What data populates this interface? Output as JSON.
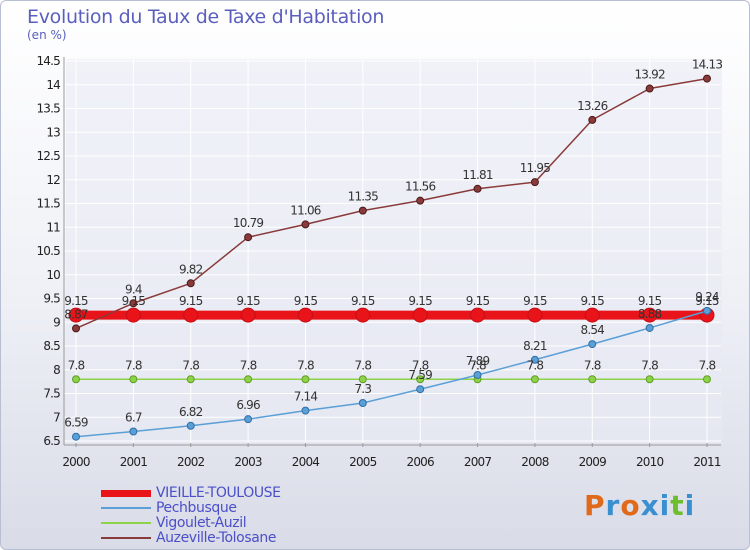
{
  "header": {
    "title": "Evolution du Taux de Taxe d'Habitation",
    "subtitle": "(en %)"
  },
  "logo_text": "Proxiti",
  "colors": {
    "axis": "#9a9a9a",
    "grid": "#ffffff",
    "tick_text": "#222222",
    "title": "#5a5fbe",
    "legend_text": "#4b4fc8"
  },
  "chart_data": {
    "type": "line",
    "title": "Evolution du Taux de Taxe d'Habitation",
    "subtitle": "(en %)",
    "xlabel": "",
    "ylabel": "",
    "x": [
      "2000",
      "2001",
      "2002",
      "2003",
      "2004",
      "2005",
      "2006",
      "2007",
      "2008",
      "2009",
      "2010",
      "2011"
    ],
    "ylim": [
      6.5,
      14.5
    ],
    "yticks": [
      "6.5",
      "7",
      "7.5",
      "8",
      "8.5",
      "9",
      "9.5",
      "10",
      "10.5",
      "11",
      "11.5",
      "12",
      "12.5",
      "13",
      "13.5",
      "14",
      "14.5"
    ],
    "grid": true,
    "legend_position": "bottom-left",
    "series": [
      {
        "name": "VIEILLE-TOULOUSE",
        "color": "#e8141a",
        "values": [
          9.15,
          9.15,
          9.15,
          9.15,
          9.15,
          9.15,
          9.15,
          9.15,
          9.15,
          9.15,
          9.15,
          9.15
        ],
        "labels": [
          "9.15",
          "9.15",
          "9.15",
          "9.15",
          "9.15",
          "9.15",
          "9.15",
          "9.15",
          "9.15",
          "9.15",
          "9.15",
          "9.15"
        ]
      },
      {
        "name": "Pechbusque",
        "color": "#5a9fd6",
        "values": [
          6.59,
          6.7,
          6.82,
          6.96,
          7.14,
          7.3,
          7.59,
          7.89,
          8.21,
          8.54,
          8.88,
          9.24
        ],
        "labels": [
          "6.59",
          "6.7",
          "6.82",
          "6.96",
          "7.14",
          "7.3",
          "7.59",
          "7.89",
          "8.21",
          "8.54",
          "8.88",
          "9.24"
        ]
      },
      {
        "name": "Vigoulet-Auzil",
        "color": "#8ed24a",
        "values": [
          7.8,
          7.8,
          7.8,
          7.8,
          7.8,
          7.8,
          7.8,
          7.8,
          7.8,
          7.8,
          7.8,
          7.8
        ],
        "labels": [
          "7.8",
          "7.8",
          "7.8",
          "7.8",
          "7.8",
          "7.8",
          "7.8",
          "7.8",
          "7.8",
          "7.8",
          "7.8",
          "7.8"
        ]
      },
      {
        "name": "Auzeville-Tolosane",
        "color": "#8a3a3a",
        "values": [
          8.87,
          9.4,
          9.82,
          10.79,
          11.06,
          11.35,
          11.56,
          11.81,
          11.95,
          13.26,
          13.92,
          14.13
        ],
        "labels": [
          "8.87",
          "9.4",
          "9.82",
          "10.79",
          "11.06",
          "11.35",
          "11.56",
          "11.81",
          "11.95",
          "13.26",
          "13.92",
          "14.13"
        ]
      }
    ]
  }
}
